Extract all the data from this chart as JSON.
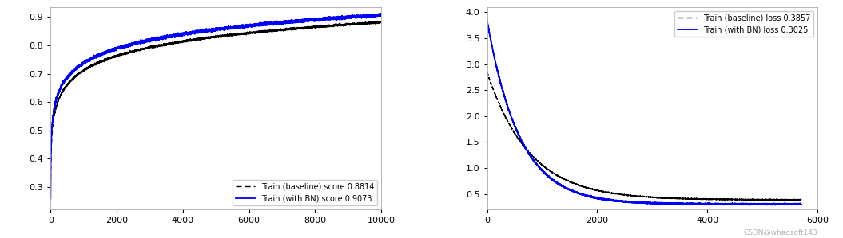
{
  "left_plot": {
    "xlim": [
      0,
      10000
    ],
    "ylim": [
      0.22,
      0.935
    ],
    "x_ticks": [
      0,
      2000,
      4000,
      6000,
      8000,
      10000
    ],
    "y_ticks": [
      0.3,
      0.4,
      0.5,
      0.6,
      0.7,
      0.8,
      0.9
    ],
    "baseline_label": "Train (baseline) score 0.8814",
    "bn_label": "Train (with BN) score 0.9073",
    "baseline_color": "black",
    "bn_color": "blue",
    "baseline_final": 0.8814,
    "bn_final": 0.9073,
    "baseline_rate": 0.00045,
    "bn_rate": 0.00065,
    "baseline_start": 0.26,
    "bn_start": 0.26,
    "n_points": 10000
  },
  "right_plot": {
    "xlim": [
      0,
      6000
    ],
    "ylim": [
      0.2,
      4.1
    ],
    "x_ticks": [
      0,
      2000,
      4000,
      6000
    ],
    "y_ticks": [
      0.5,
      1.0,
      1.5,
      2.0,
      2.5,
      3.0,
      3.5,
      4.0
    ],
    "baseline_label": "Train (baseline) loss 0.3857",
    "bn_label": "Train (with BN) loss 0.3025",
    "baseline_color": "black",
    "bn_color": "blue",
    "baseline_final": 0.3857,
    "bn_final": 0.3025,
    "baseline_start": 2.85,
    "bn_start": 3.85,
    "baseline_rate": 0.0013,
    "bn_rate": 0.0017,
    "n_points": 5700
  },
  "fig_width": 10.55,
  "fig_height": 2.99,
  "watermark": "CSDN@whaosoft143"
}
